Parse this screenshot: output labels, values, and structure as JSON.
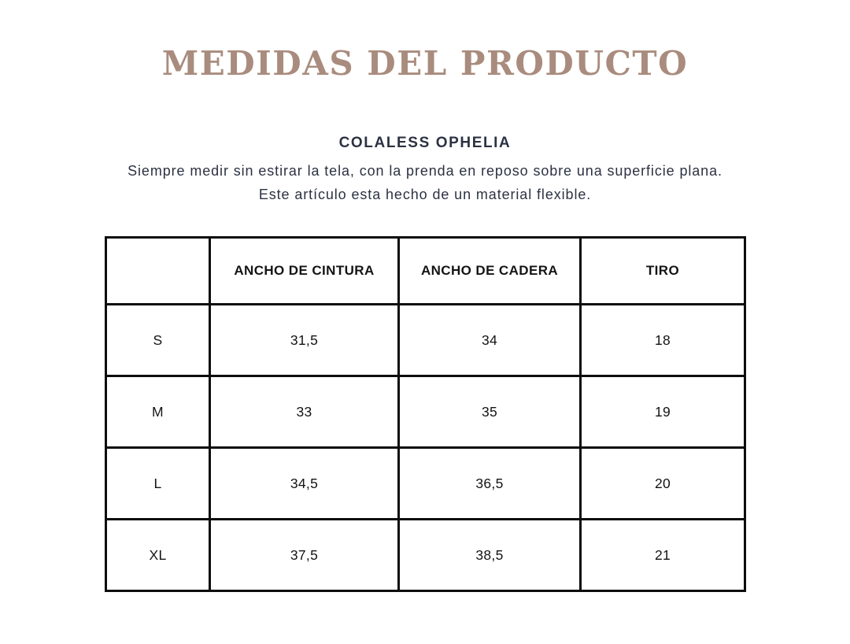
{
  "header": {
    "title": "MEDIDAS DEL PRODUCTO"
  },
  "intro": {
    "product_name": "COLALESS OPHELIA",
    "line1": "Siempre medir sin estirar la tela, con la prenda en reposo sobre una superficie plana.",
    "line2": "Este artículo esta hecho de un material flexible."
  },
  "chart_data": {
    "type": "table",
    "title": "MEDIDAS DEL PRODUCTO",
    "columns": [
      "",
      "ANCHO DE CINTURA",
      "ANCHO DE CADERA",
      "TIRO"
    ],
    "rows": [
      [
        "S",
        "31,5",
        "34",
        "18"
      ],
      [
        "M",
        "33",
        "35",
        "19"
      ],
      [
        "L",
        "34,5",
        "36,5",
        "20"
      ],
      [
        "XL",
        "37,5",
        "38,5",
        "21"
      ]
    ]
  },
  "colors": {
    "title": "#a98c7e",
    "body_text": "#2b3242",
    "table_text": "#141414",
    "table_border": "#0d0d0d",
    "background": "#ffffff"
  }
}
